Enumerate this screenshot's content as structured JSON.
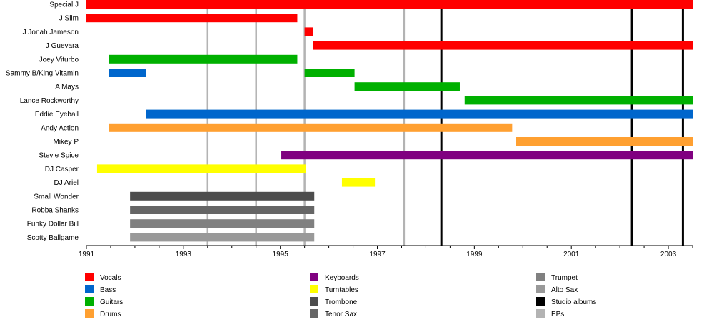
{
  "chart_data": {
    "type": "timeline",
    "xlim": [
      1991,
      2003.5
    ],
    "x_ticks": [
      1991,
      1993,
      1995,
      1997,
      1999,
      2001,
      2003
    ],
    "grid": false,
    "members": [
      {
        "name": "Special J",
        "bars": [
          {
            "start": 1991.0,
            "end": 2003.5,
            "role": "Vocals"
          }
        ]
      },
      {
        "name": "J Slim",
        "bars": [
          {
            "start": 1991.0,
            "end": 1995.35,
            "role": "Vocals"
          }
        ]
      },
      {
        "name": "J Jonah Jameson",
        "bars": [
          {
            "start": 1995.5,
            "end": 1995.68,
            "role": "Vocals"
          }
        ]
      },
      {
        "name": "J Guevara",
        "bars": [
          {
            "start": 1995.68,
            "end": 2003.5,
            "role": "Vocals"
          }
        ]
      },
      {
        "name": "Joey Viturbo",
        "bars": [
          {
            "start": 1991.47,
            "end": 1995.35,
            "role": "Guitars"
          }
        ]
      },
      {
        "name": "Sammy B/King Vitamin",
        "bars": [
          {
            "start": 1991.47,
            "end": 1992.23,
            "role": "Bass"
          },
          {
            "start": 1995.5,
            "end": 1996.53,
            "role": "Guitars"
          }
        ]
      },
      {
        "name": "A Mays",
        "bars": [
          {
            "start": 1996.53,
            "end": 1998.7,
            "role": "Guitars"
          }
        ]
      },
      {
        "name": "Lance Rockworthy",
        "bars": [
          {
            "start": 1998.8,
            "end": 2003.5,
            "role": "Guitars"
          }
        ]
      },
      {
        "name": "Eddie Eyeball",
        "bars": [
          {
            "start": 1992.23,
            "end": 2003.5,
            "role": "Bass"
          }
        ]
      },
      {
        "name": "Andy Action",
        "bars": [
          {
            "start": 1991.47,
            "end": 1999.78,
            "role": "Drums"
          }
        ]
      },
      {
        "name": "Mikey P",
        "bars": [
          {
            "start": 1999.85,
            "end": 2003.5,
            "role": "Drums"
          }
        ]
      },
      {
        "name": "Stevie Spice",
        "bars": [
          {
            "start": 1995.02,
            "end": 2003.5,
            "role": "Keyboards"
          }
        ]
      },
      {
        "name": "DJ Casper",
        "bars": [
          {
            "start": 1991.22,
            "end": 1995.52,
            "role": "Turntables"
          }
        ]
      },
      {
        "name": "DJ Ariel",
        "bars": [
          {
            "start": 1996.27,
            "end": 1996.95,
            "role": "Turntables"
          }
        ]
      },
      {
        "name": "Small Wonder",
        "bars": [
          {
            "start": 1991.9,
            "end": 1995.7,
            "role": "Trombone"
          }
        ]
      },
      {
        "name": "Robba Shanks",
        "bars": [
          {
            "start": 1991.9,
            "end": 1995.7,
            "role": "Tenor Sax"
          }
        ]
      },
      {
        "name": "Funky Dollar Bill",
        "bars": [
          {
            "start": 1991.9,
            "end": 1995.7,
            "role": "Trumpet"
          }
        ]
      },
      {
        "name": "Scotty Ballgame",
        "bars": [
          {
            "start": 1991.9,
            "end": 1995.7,
            "role": "Alto Sax"
          }
        ]
      }
    ],
    "events": [
      {
        "x": 1993.5,
        "type": "EPs"
      },
      {
        "x": 1994.5,
        "type": "EPs"
      },
      {
        "x": 1995.5,
        "type": "EPs"
      },
      {
        "x": 1997.55,
        "type": "EPs"
      },
      {
        "x": 1998.32,
        "type": "Studio albums"
      },
      {
        "x": 2002.25,
        "type": "Studio albums"
      },
      {
        "x": 2003.3,
        "type": "Studio albums"
      }
    ],
    "legend": [
      {
        "label": "Vocals",
        "color": "#ff0000"
      },
      {
        "label": "Bass",
        "color": "#0066cc"
      },
      {
        "label": "Guitars",
        "color": "#00b000"
      },
      {
        "label": "Drums",
        "color": "#ffa031"
      },
      {
        "label": "Keyboards",
        "color": "#800080"
      },
      {
        "label": "Turntables",
        "color": "#ffff00"
      },
      {
        "label": "Trombone",
        "color": "#4d4d4d"
      },
      {
        "label": "Tenor Sax",
        "color": "#666666"
      },
      {
        "label": "Trumpet",
        "color": "#808080"
      },
      {
        "label": "Alto Sax",
        "color": "#999999"
      },
      {
        "label": "Studio albums",
        "color": "#000000"
      },
      {
        "label": "EPs",
        "color": "#b3b3b3"
      }
    ],
    "legend_placement": "bottom"
  }
}
